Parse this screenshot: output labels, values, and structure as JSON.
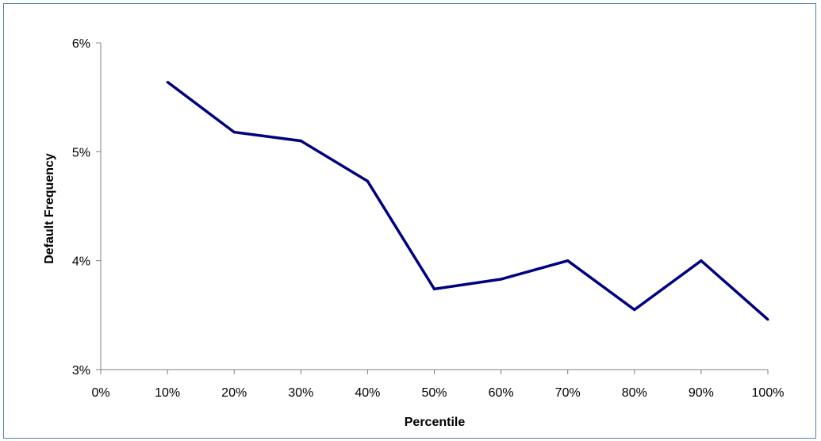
{
  "chart_data": {
    "type": "line",
    "title": "",
    "xlabel": "Percentile",
    "ylabel": "Default Frequency",
    "x_ticks": [
      "0%",
      "10%",
      "20%",
      "30%",
      "40%",
      "50%",
      "60%",
      "70%",
      "80%",
      "90%",
      "100%"
    ],
    "y_ticks": [
      "3%",
      "4%",
      "5%",
      "6%"
    ],
    "xlim": [
      0,
      100
    ],
    "ylim": [
      3,
      6
    ],
    "grid": false,
    "legend": "none",
    "series": [
      {
        "color": "#000080",
        "x": [
          10,
          20,
          30,
          40,
          50,
          60,
          70,
          80,
          90,
          100
        ],
        "values": [
          5.64,
          5.18,
          5.1,
          4.73,
          3.74,
          3.83,
          4.0,
          3.55,
          4.0,
          3.46
        ]
      }
    ]
  },
  "style": {
    "frame_color": "#4f81bd",
    "axis_color": "#808080",
    "line_color": "#000080"
  }
}
